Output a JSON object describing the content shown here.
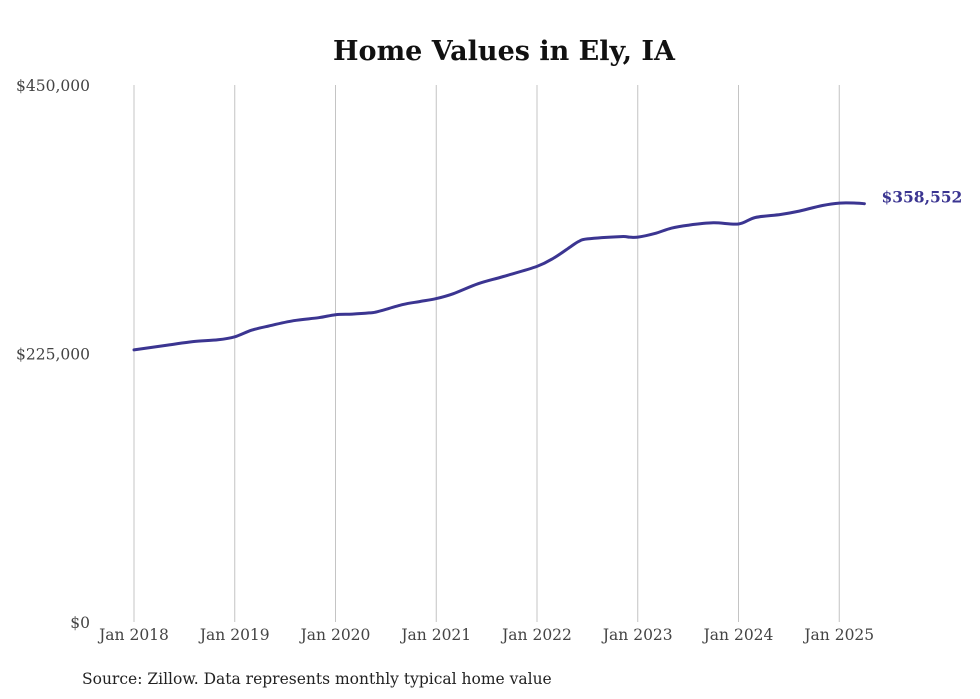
{
  "chart_data": {
    "type": "line",
    "title": "Home Values in Ely, IA",
    "xlabel": "",
    "ylabel": "",
    "ylim": [
      0,
      450000
    ],
    "y_ticks": [
      {
        "value": 0,
        "label": "$0"
      },
      {
        "value": 225000,
        "label": "$225,000"
      },
      {
        "value": 450000,
        "label": "$450,000"
      }
    ],
    "x_ticks": [
      {
        "value": "2018-01",
        "label": "Jan 2018"
      },
      {
        "value": "2019-01",
        "label": "Jan 2019"
      },
      {
        "value": "2020-01",
        "label": "Jan 2020"
      },
      {
        "value": "2021-01",
        "label": "Jan 2021"
      },
      {
        "value": "2022-01",
        "label": "Jan 2022"
      },
      {
        "value": "2023-01",
        "label": "Jan 2023"
      },
      {
        "value": "2024-01",
        "label": "Jan 2024"
      },
      {
        "value": "2025-01",
        "label": "Jan 2025"
      }
    ],
    "vertical_grid": true,
    "horizontal_grid": false,
    "series": [
      {
        "color": "#3b3591",
        "end_label": "$358,552",
        "points": [
          {
            "x": "2018-01",
            "y": 228000
          },
          {
            "x": "2018-03",
            "y": 230000
          },
          {
            "x": "2018-05",
            "y": 232000
          },
          {
            "x": "2018-08",
            "y": 235000
          },
          {
            "x": "2018-11",
            "y": 236500
          },
          {
            "x": "2019-01",
            "y": 239000
          },
          {
            "x": "2019-03",
            "y": 244500
          },
          {
            "x": "2019-05",
            "y": 248000
          },
          {
            "x": "2019-08",
            "y": 252500
          },
          {
            "x": "2019-11",
            "y": 255000
          },
          {
            "x": "2020-01",
            "y": 257500
          },
          {
            "x": "2020-03",
            "y": 258000
          },
          {
            "x": "2020-05",
            "y": 259000
          },
          {
            "x": "2020-06",
            "y": 260000
          },
          {
            "x": "2020-09",
            "y": 266000
          },
          {
            "x": "2020-11",
            "y": 268500
          },
          {
            "x": "2021-01",
            "y": 271000
          },
          {
            "x": "2021-03",
            "y": 275000
          },
          {
            "x": "2021-06",
            "y": 283500
          },
          {
            "x": "2021-09",
            "y": 289500
          },
          {
            "x": "2022-01",
            "y": 298000
          },
          {
            "x": "2022-03",
            "y": 305000
          },
          {
            "x": "2022-05",
            "y": 314500
          },
          {
            "x": "2022-06",
            "y": 319000
          },
          {
            "x": "2022-07",
            "y": 321000
          },
          {
            "x": "2022-11",
            "y": 323000
          },
          {
            "x": "2022-12",
            "y": 322500
          },
          {
            "x": "2023-01",
            "y": 322500
          },
          {
            "x": "2023-03",
            "y": 325500
          },
          {
            "x": "2023-05",
            "y": 330000
          },
          {
            "x": "2023-07",
            "y": 332500
          },
          {
            "x": "2023-10",
            "y": 334500
          },
          {
            "x": "2024-01",
            "y": 333500
          },
          {
            "x": "2024-03",
            "y": 339000
          },
          {
            "x": "2024-06",
            "y": 341500
          },
          {
            "x": "2024-08",
            "y": 344000
          },
          {
            "x": "2024-11",
            "y": 349000
          },
          {
            "x": "2025-01",
            "y": 351000
          },
          {
            "x": "2025-03",
            "y": 351000
          },
          {
            "x": "2025-04",
            "y": 350500
          }
        ]
      }
    ],
    "source_note": "Source: Zillow. Data represents monthly typical home value"
  }
}
